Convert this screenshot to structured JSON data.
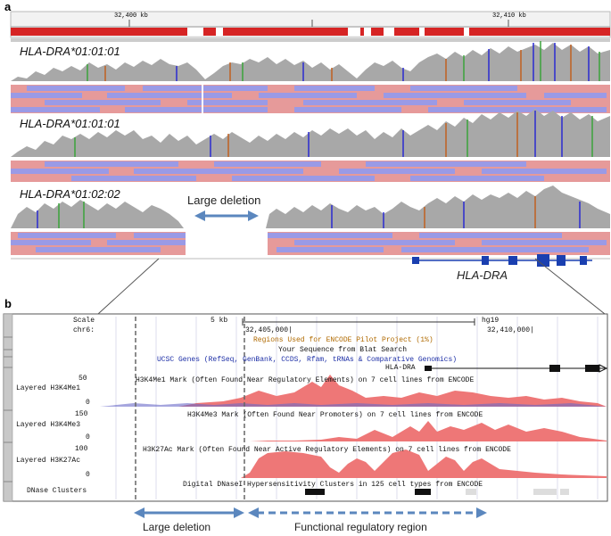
{
  "panel_a": {
    "letter": "a",
    "ruler": {
      "left_label": "32,400 kb",
      "right_label": "32,410 kb"
    },
    "tracks": [
      {
        "label": "HLA-DRA*01:01:01"
      },
      {
        "label": "HLA-DRA*01:01:01"
      },
      {
        "label": "HLA-DRA*01:02:02"
      }
    ],
    "deletion_label": "Large deletion",
    "gene_label": "HLA-DRA"
  },
  "panel_b": {
    "letter": "b",
    "scale_label": "Scale",
    "chrom_label": "chr6:",
    "scale_text": "5 kb",
    "assembly": "hg19",
    "pos_left": "32,405,000|",
    "pos_right": "32,410,000|",
    "encode_regions": "Regions Used for ENCODE Pilot Project (1%)",
    "blat": "Your Sequence from Blat Search",
    "ucsc_genes": "UCSC Genes (RefSeq, GenBank, CCDS, Rfam, tRNAs & Comparative Genomics)",
    "gene_name": "HLA-DRA",
    "tracks": [
      {
        "name": "Layered H3K4Me1",
        "max": "50",
        "min": "0",
        "title": "H3K4Me1 Mark (Often Found Near Regulatory Elements) on 7 cell lines from ENCODE"
      },
      {
        "name": "Layered H3K4Me3",
        "max": "150",
        "min": "0",
        "title": "H3K4Me3 Mark (Often Found Near Promoters) on 7 cell lines from ENCODE"
      },
      {
        "name": "Layered H3K27Ac",
        "max": "100",
        "min": "0",
        "title": "H3K27Ac Mark (Often Found Near Active Regulatory Elements) on 7 cell lines from ENCODE"
      }
    ],
    "dnase_label": "DNase Clusters",
    "dnase_title": "Digital DNaseI Hypersensitivity Clusters in 125 cell types from ENCODE"
  },
  "bottom": {
    "deletion_label": "Large deletion",
    "functional_label": "Functional regulatory region"
  },
  "colors": {
    "ruler_red": "#d62424",
    "coverage_gray": "#a8a8a8",
    "read_red": "#e69a9a",
    "read_blue": "#9a9ae6",
    "arrow_blue": "#5b87be",
    "gene_blue": "#1a3fb0",
    "signal_red": "#ee7777",
    "encode_orange": "#b06a00",
    "ucsc_blue": "#1c2ea6"
  }
}
